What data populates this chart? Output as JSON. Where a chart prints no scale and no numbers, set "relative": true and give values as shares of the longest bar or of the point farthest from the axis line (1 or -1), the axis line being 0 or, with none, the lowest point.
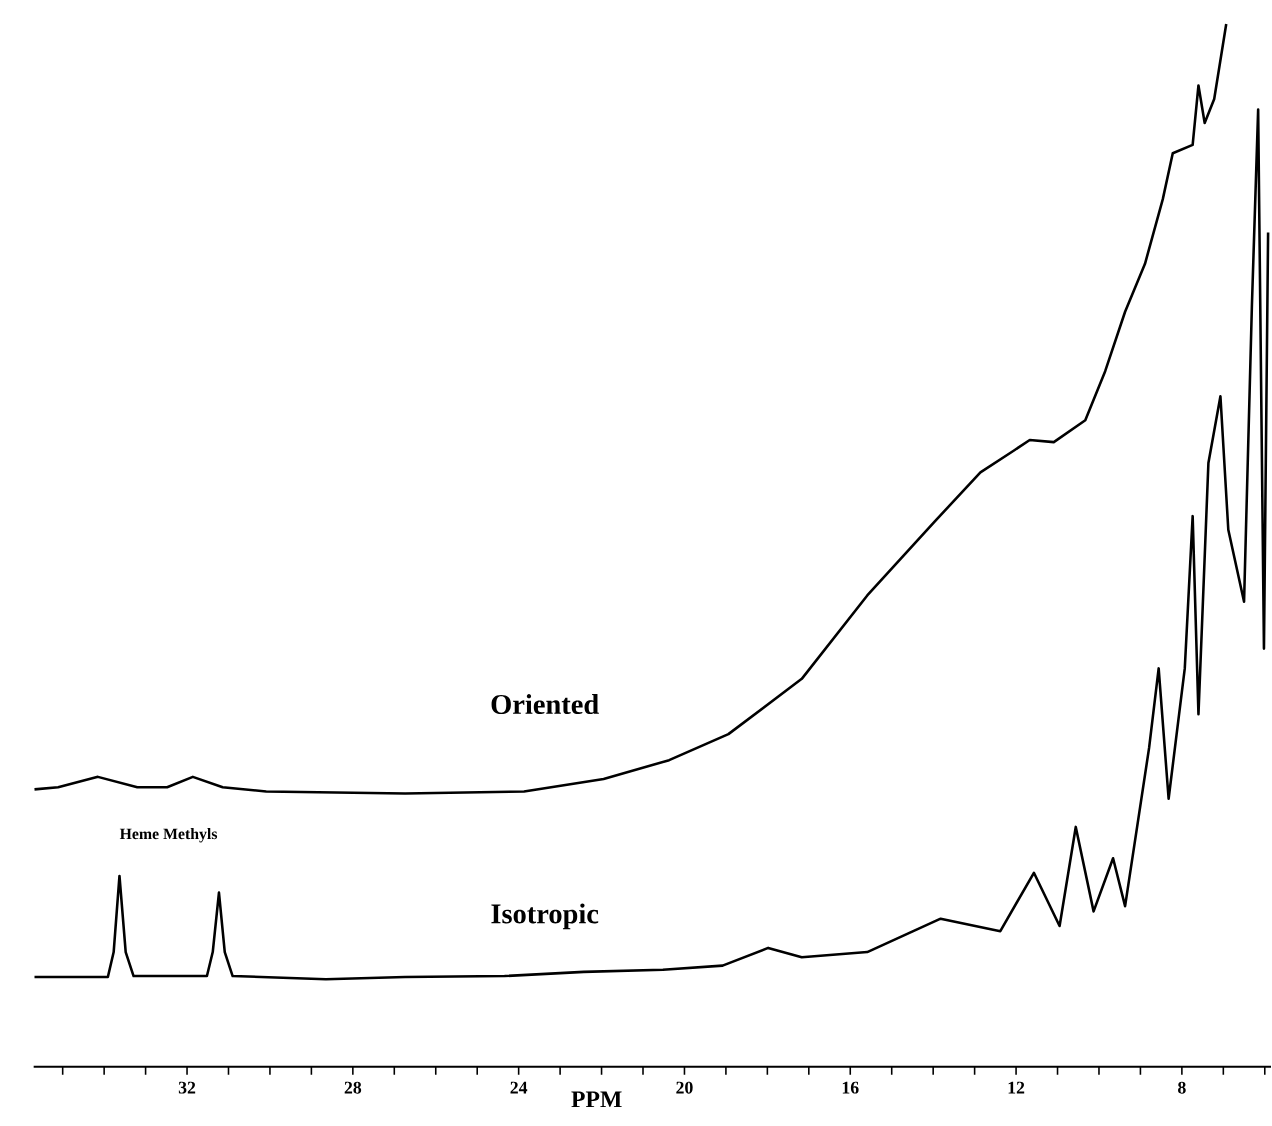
{
  "chart_data": {
    "type": "line",
    "relative": true,
    "xlabel": "PPM",
    "annotations": [
      "Heme Methyls"
    ],
    "xlim": [
      35.7,
      5.85
    ],
    "xticks": [
      {
        "value": 35,
        "label": null
      },
      {
        "value": 34,
        "label": null
      },
      {
        "value": 33,
        "label": null
      },
      32,
      {
        "value": 31,
        "label": null
      },
      {
        "value": 30,
        "label": null
      },
      {
        "value": 29,
        "label": null
      },
      28,
      {
        "value": 27,
        "label": null
      },
      {
        "value": 26,
        "label": null
      },
      {
        "value": 25,
        "label": null
      },
      24,
      {
        "value": 23,
        "label": null
      },
      {
        "value": 22,
        "label": null
      },
      {
        "value": 21,
        "label": null
      },
      20,
      {
        "value": 19,
        "label": null
      },
      {
        "value": 18,
        "label": null
      },
      {
        "value": 17,
        "label": null
      },
      16,
      {
        "value": 15,
        "label": null
      },
      {
        "value": 14,
        "label": null
      },
      {
        "value": 13,
        "label": null
      },
      12,
      {
        "value": 11,
        "label": null
      },
      {
        "value": 10,
        "label": null
      },
      {
        "value": 9,
        "label": null
      },
      8,
      {
        "value": 7,
        "label": null
      },
      {
        "value": 6,
        "label": null
      }
    ],
    "grid": false,
    "marker": "none",
    "line_style": "solid",
    "series": [
      {
        "name": "Oriented",
        "color": "#000000",
        "x": [
          35.68,
          35.11,
          34.15,
          33.2,
          32.48,
          31.86,
          31.14,
          30.09,
          26.74,
          23.87,
          21.95,
          20.37,
          18.94,
          17.17,
          15.59,
          13.96,
          12.86,
          12.05,
          11.67,
          11.09,
          10.33,
          9.85,
          9.37,
          8.89,
          8.46,
          8.22,
          7.74,
          7.6,
          7.45,
          7.22,
          6.93
        ],
        "values": [
          0.266,
          0.268,
          0.278,
          0.268,
          0.268,
          0.278,
          0.268,
          0.264,
          0.262,
          0.264,
          0.276,
          0.294,
          0.319,
          0.372,
          0.452,
          0.523,
          0.57,
          0.591,
          0.601,
          0.599,
          0.62,
          0.667,
          0.724,
          0.77,
          0.832,
          0.876,
          0.884,
          0.941,
          0.905,
          0.928,
          1.0
        ]
      },
      {
        "name": "Isotropic",
        "color": "#000000",
        "x": [
          35.68,
          33.91,
          33.77,
          33.63,
          33.48,
          33.29,
          31.52,
          31.38,
          31.23,
          31.09,
          30.9,
          28.65,
          26.74,
          24.34,
          22.43,
          20.52,
          19.08,
          17.98,
          17.17,
          15.59,
          13.82,
          12.38,
          11.57,
          10.95,
          10.56,
          10.13,
          9.66,
          9.37,
          8.79,
          8.56,
          8.32,
          7.93,
          7.74,
          7.6,
          7.36,
          7.07,
          6.88,
          6.5,
          6.31,
          6.16,
          6.02,
          5.92
        ],
        "values": [
          0.086,
          0.086,
          0.11,
          0.183,
          0.11,
          0.087,
          0.087,
          0.11,
          0.167,
          0.11,
          0.087,
          0.084,
          0.086,
          0.087,
          0.091,
          0.093,
          0.097,
          0.114,
          0.105,
          0.11,
          0.142,
          0.13,
          0.186,
          0.135,
          0.23,
          0.149,
          0.2,
          0.154,
          0.306,
          0.382,
          0.257,
          0.382,
          0.528,
          0.338,
          0.579,
          0.643,
          0.515,
          0.446,
          0.731,
          0.918,
          0.401,
          0.8
        ]
      }
    ]
  }
}
